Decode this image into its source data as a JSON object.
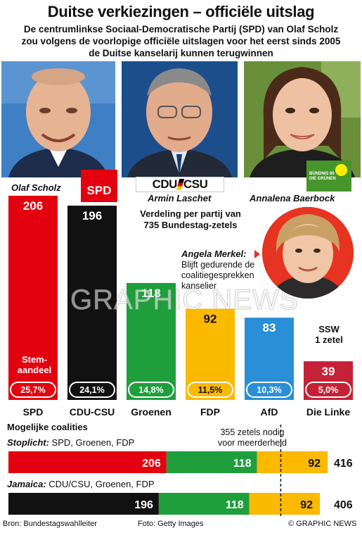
{
  "title": "Duitse verkiezingen – officiële uitslag",
  "subtitle_lines": [
    "De centrumlinkse Sociaal-Democratische Partij (SPD) van Olaf Scholz",
    "zou volgens de voorlopige officiële uitslagen voor het eerst sinds 2005",
    "de Duitse kanselarij kunnen terugwinnen"
  ],
  "people": {
    "scholz": "Olaf Scholz",
    "laschet": "Armin Laschet",
    "baerbock": "Annalena Baerbock"
  },
  "logos": {
    "spd": "SPD",
    "cdu_left": "CDU",
    "cdu_right": "CSU",
    "greens_line1": "BÜNDNIS 90",
    "greens_line2": "DIE GRÜNEN"
  },
  "verdeling_lines": [
    "Verdeling per partij van",
    "735 Bundestag-zetels"
  ],
  "merkel": {
    "name": "Angela Merkel:",
    "note_lines": [
      "Blijft gedurende de",
      "coalitiegesprekken",
      "kanselier"
    ]
  },
  "ssw_lines": [
    "SSW",
    "1 zetel"
  ],
  "stem_lines": [
    "Stem-",
    "aandeel"
  ],
  "watermark": "GRAPHIC NEWS",
  "colors": {
    "SPD": "#e3000f",
    "CDU-CSU": "#111111",
    "Groenen": "#1f9e3c",
    "FDP": "#fbb900",
    "AfD": "#2a8fd6",
    "Die Linke": "#c52137"
  },
  "chart_data": [
    {
      "type": "bar",
      "categories": [
        "SPD",
        "CDU-CSU",
        "Groenen",
        "FDP",
        "AfD",
        "Die Linke"
      ],
      "values": [
        206,
        196,
        118,
        92,
        83,
        39
      ],
      "vote_share": [
        "25,7%",
        "24,1%",
        "14,8%",
        "11,5%",
        "10,3%",
        "5,0%"
      ],
      "ylim": [
        0,
        206
      ]
    },
    {
      "type": "bar",
      "stacked": true,
      "orientation": "horizontal",
      "title": "Mogelijke coalities",
      "threshold": 355,
      "threshold_label_lines": [
        "355 zetels nodig",
        "voor meerderheid"
      ],
      "xlim": [
        0,
        416
      ],
      "coalitions": [
        {
          "name": "Stoplicht:",
          "members_text": " SPD, Groenen, FDP",
          "parts": [
            {
              "party": "SPD",
              "value": 206
            },
            {
              "party": "Groenen",
              "value": 118
            },
            {
              "party": "FDP",
              "value": 92
            }
          ],
          "total": 416
        },
        {
          "name": "Jamaica:",
          "members_text": " CDU/CSU, Groenen, FDP",
          "parts": [
            {
              "party": "CDU-CSU",
              "value": 196
            },
            {
              "party": "Groenen",
              "value": 118
            },
            {
              "party": "FDP",
              "value": 92
            }
          ],
          "total": 406
        }
      ]
    }
  ],
  "footer": {
    "source": "Bron: Bundestagswahlleiter",
    "photo": "Foto: Getty Images",
    "copyright": "© GRAPHIC NEWS"
  }
}
